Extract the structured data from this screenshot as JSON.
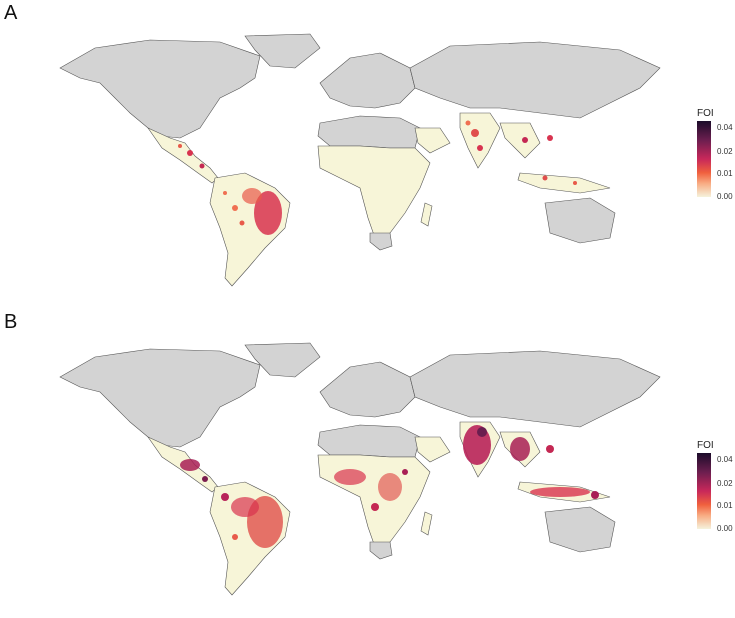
{
  "panels": [
    {
      "letter": "A"
    },
    {
      "letter": "B"
    }
  ],
  "legend": {
    "title": "FOI",
    "ticks": [
      "0.04",
      "0.02",
      "0.01",
      "0.00"
    ],
    "colors": [
      "#1b0c2a",
      "#6b1e4f",
      "#c8285a",
      "#f0603e",
      "#f8ab82",
      "#f5f2dc"
    ]
  },
  "map_style": {
    "land_gray": "#d3d3d3",
    "endemic_cream": "#f7f5d8",
    "border": "#555555"
  }
}
